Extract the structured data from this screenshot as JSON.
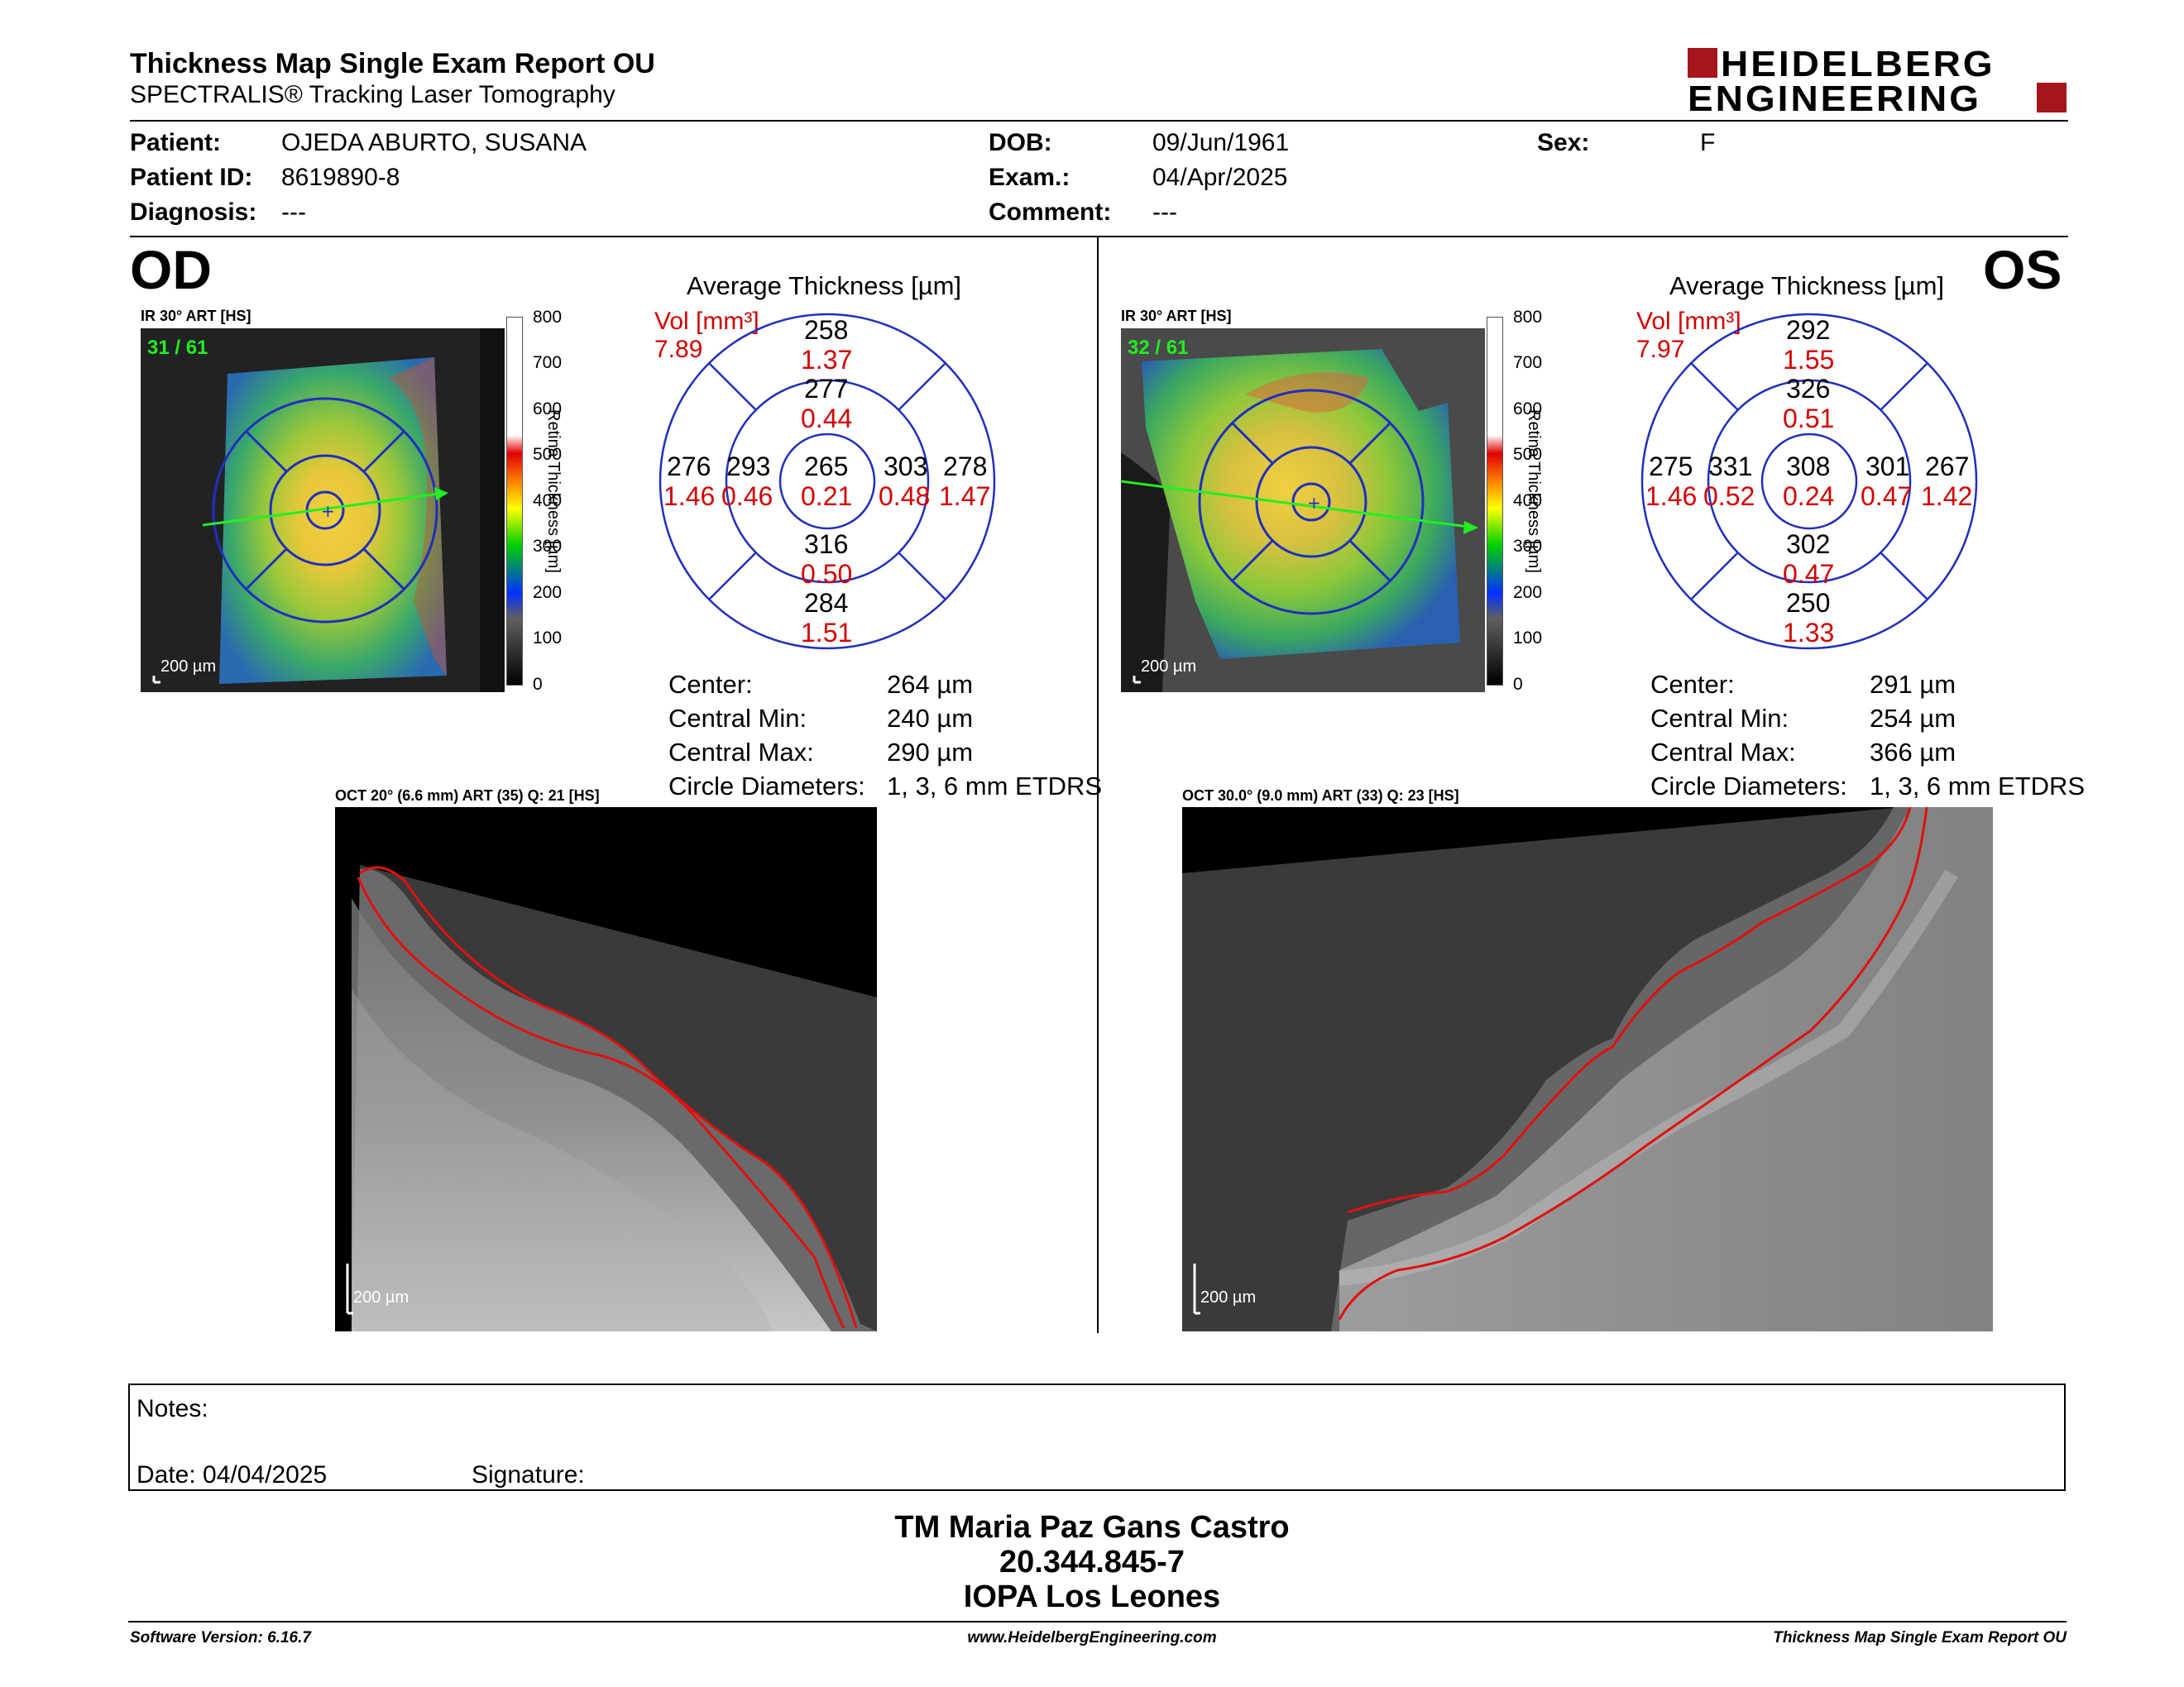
{
  "header": {
    "title": "Thickness Map Single Exam Report OU",
    "subtitle": "SPECTRALIS® Tracking Laser Tomography",
    "logo_line1": "HEIDELBERG",
    "logo_line2": "ENGINEERING"
  },
  "patient": {
    "patient_label": "Patient:",
    "patient_value": "OJEDA ABURTO, SUSANA",
    "id_label": "Patient ID:",
    "id_value": "8619890-8",
    "diagnosis_label": "Diagnosis:",
    "diagnosis_value": "---",
    "dob_label": "DOB:",
    "dob_value": "09/Jun/1961",
    "exam_label": "Exam.:",
    "exam_value": "04/Apr/2025",
    "comment_label": "Comment:",
    "comment_value": "---",
    "sex_label": "Sex:",
    "sex_value": "F"
  },
  "od": {
    "eye": "OD",
    "ir_label": "IR 30° ART [HS]",
    "frame_counter": "31 / 61",
    "scale_bar": "200 µm",
    "avg_title": "Average Thickness [µm]",
    "vol_label": "Vol [mm³]",
    "vol_value": "7.89",
    "sectors": {
      "center": {
        "t": "265",
        "v": "0.21"
      },
      "inner_sup": {
        "t": "277",
        "v": "0.44"
      },
      "inner_inf": {
        "t": "316",
        "v": "0.50"
      },
      "inner_left": {
        "t": "293",
        "v": "0.46"
      },
      "inner_right": {
        "t": "303",
        "v": "0.48"
      },
      "outer_sup": {
        "t": "258",
        "v": "1.37"
      },
      "outer_inf": {
        "t": "284",
        "v": "1.51"
      },
      "outer_left": {
        "t": "276",
        "v": "1.46"
      },
      "outer_right": {
        "t": "278",
        "v": "1.47"
      }
    },
    "stats": {
      "center_label": "Center:",
      "center_value": "264 µm",
      "min_label": "Central Min:",
      "min_value": "240 µm",
      "max_label": "Central Max:",
      "max_value": "290 µm",
      "circ_label": "Circle Diameters:",
      "circ_value": "1, 3, 6 mm ETDRS"
    },
    "oct_label": "OCT 20° (6.6 mm) ART (35) Q: 21 [HS]",
    "oct_scale": "200 µm"
  },
  "os": {
    "eye": "OS",
    "ir_label": "IR 30° ART [HS]",
    "frame_counter": "32 / 61",
    "scale_bar": "200 µm",
    "avg_title": "Average Thickness [µm]",
    "vol_label": "Vol [mm³]",
    "vol_value": "7.97",
    "sectors": {
      "center": {
        "t": "308",
        "v": "0.24"
      },
      "inner_sup": {
        "t": "326",
        "v": "0.51"
      },
      "inner_inf": {
        "t": "302",
        "v": "0.47"
      },
      "inner_left": {
        "t": "331",
        "v": "0.52"
      },
      "inner_right": {
        "t": "301",
        "v": "0.47"
      },
      "outer_sup": {
        "t": "292",
        "v": "1.55"
      },
      "outer_inf": {
        "t": "250",
        "v": "1.33"
      },
      "outer_left": {
        "t": "275",
        "v": "1.46"
      },
      "outer_right": {
        "t": "267",
        "v": "1.42"
      }
    },
    "stats": {
      "center_label": "Center:",
      "center_value": "291 µm",
      "min_label": "Central Min:",
      "min_value": "254 µm",
      "max_label": "Central Max:",
      "max_value": "366 µm",
      "circ_label": "Circle Diameters:",
      "circ_value": "1, 3, 6 mm ETDRS"
    },
    "oct_label": "OCT 30.0° (9.0 mm) ART (33) Q: 23 [HS]",
    "oct_scale": "200 µm"
  },
  "legend": {
    "ticks": [
      "800",
      "700",
      "600",
      "500",
      "400",
      "300",
      "200",
      "100",
      "0"
    ],
    "title": "Retina Thickness [µm]"
  },
  "notes": {
    "notes_label": "Notes:",
    "date_label": "Date: 04/04/2025",
    "signature_label": "Signature:"
  },
  "signature_block": {
    "name": "TM Maria Paz Gans Castro",
    "rut": "20.344.845-7",
    "clinic": "IOPA Los Leones"
  },
  "footer": {
    "software": "Software Version: 6.16.7",
    "website": "www.HeidelbergEngineering.com",
    "report": "Thickness Map Single Exam Report OU"
  },
  "colors": {
    "logo_red": "#a4161a",
    "sector_blue": "#1f2fbf",
    "volume_red": "#d40000",
    "segmentation_red": "#e01010",
    "frame_green": "#22ee22"
  }
}
